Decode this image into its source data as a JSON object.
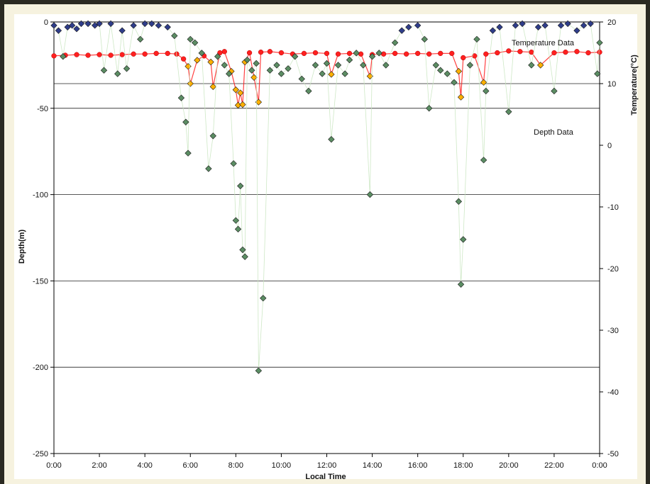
{
  "chart_data": {
    "type": "scatter",
    "title": "",
    "xlabel": "Local Time",
    "ylabel": "Depth(m)",
    "y2label": "Temperature(°C)",
    "x_ticks": [
      "0:00",
      "2:00",
      "4:00",
      "6:00",
      "8:00",
      "10:00",
      "12:00",
      "14:00",
      "16:00",
      "18:00",
      "20:00",
      "22:00",
      "0:00"
    ],
    "x_unit": "hours",
    "xlim": [
      0,
      24
    ],
    "ylim": [
      -250,
      0
    ],
    "y_ticks": [
      0,
      -50,
      -100,
      -150,
      -200,
      -250
    ],
    "y2lim": [
      -50,
      20
    ],
    "y2_ticks": [
      20,
      10,
      0,
      -10,
      -20,
      -30,
      -40,
      -50
    ],
    "grid": "horizontal major gridlines",
    "legend": "series labels above lines",
    "series": [
      {
        "name": "Temperature Data",
        "axis": "right",
        "color": "#ff2020",
        "marker_color": "#ffb000",
        "x": [
          0.0,
          0.5,
          1.0,
          1.5,
          2.0,
          2.5,
          3.0,
          3.5,
          4.0,
          4.5,
          5.0,
          5.4,
          5.7,
          5.9,
          6.0,
          6.3,
          6.6,
          6.9,
          7.0,
          7.3,
          7.5,
          7.8,
          8.0,
          8.1,
          8.2,
          8.3,
          8.4,
          8.6,
          8.8,
          9.0,
          9.1,
          9.5,
          10.0,
          10.5,
          11.0,
          11.5,
          12.0,
          12.2,
          12.5,
          13.0,
          13.5,
          13.9,
          14.0,
          14.5,
          15.0,
          15.5,
          16.0,
          16.5,
          17.0,
          17.5,
          17.8,
          17.9,
          18.0,
          18.5,
          18.9,
          19.0,
          19.5,
          20.0,
          20.5,
          21.0,
          21.4,
          22.0,
          22.5,
          23.0,
          23.5,
          24.0
        ],
        "y": [
          14.5,
          14.6,
          14.7,
          14.6,
          14.7,
          14.6,
          14.7,
          14.8,
          14.8,
          14.9,
          14.9,
          14.8,
          14.0,
          12.8,
          10.0,
          13.8,
          14.5,
          13.5,
          9.5,
          15.0,
          15.2,
          12.0,
          9.0,
          6.5,
          8.5,
          6.6,
          13.5,
          15.0,
          11.0,
          7.0,
          15.1,
          15.2,
          15.0,
          14.8,
          14.9,
          15.0,
          14.9,
          11.5,
          14.8,
          14.9,
          14.8,
          11.2,
          14.7,
          14.8,
          14.9,
          14.8,
          14.9,
          14.8,
          14.9,
          14.9,
          12.0,
          7.8,
          14.2,
          14.5,
          10.2,
          14.8,
          15.0,
          15.3,
          15.2,
          15.1,
          13.0,
          15.0,
          15.1,
          15.2,
          15.0,
          15.1
        ]
      },
      {
        "name": "Depth Data",
        "axis": "left",
        "color": "#c9e6c0",
        "marker_color": "#5b8d63",
        "marker_color_alt": "#2f3d8a",
        "x": [
          0.0,
          0.2,
          0.4,
          0.6,
          0.8,
          1.0,
          1.2,
          1.5,
          1.8,
          2.0,
          2.2,
          2.5,
          2.8,
          3.0,
          3.2,
          3.5,
          3.8,
          4.0,
          4.3,
          4.6,
          5.0,
          5.3,
          5.6,
          5.8,
          5.9,
          6.0,
          6.2,
          6.5,
          6.8,
          7.0,
          7.2,
          7.5,
          7.7,
          7.9,
          8.0,
          8.1,
          8.2,
          8.3,
          8.4,
          8.5,
          8.7,
          8.9,
          9.0,
          9.2,
          9.5,
          9.8,
          10.0,
          10.3,
          10.6,
          10.9,
          11.2,
          11.5,
          11.8,
          12.0,
          12.2,
          12.5,
          12.8,
          13.0,
          13.3,
          13.6,
          13.9,
          14.0,
          14.3,
          14.6,
          15.0,
          15.3,
          15.6,
          16.0,
          16.3,
          16.5,
          16.8,
          17.0,
          17.3,
          17.6,
          17.8,
          17.9,
          18.0,
          18.3,
          18.6,
          18.9,
          19.0,
          19.3,
          19.6,
          20.0,
          20.3,
          20.6,
          21.0,
          21.3,
          21.6,
          22.0,
          22.3,
          22.6,
          23.0,
          23.3,
          23.6,
          23.9,
          24.0
        ],
        "y": [
          -2,
          -5,
          -20,
          -3,
          -2,
          -4,
          -1,
          -1,
          -2,
          -1,
          -28,
          -1,
          -30,
          -5,
          -27,
          -2,
          -10,
          -1,
          -1,
          -2,
          -3,
          -8,
          -44,
          -58,
          -76,
          -10,
          -12,
          -18,
          -85,
          -66,
          -20,
          -25,
          -30,
          -82,
          -115,
          -120,
          -95,
          -132,
          -136,
          -22,
          -28,
          -24,
          -202,
          -160,
          -28,
          -25,
          -30,
          -27,
          -20,
          -33,
          -40,
          -25,
          -30,
          -24,
          -68,
          -25,
          -30,
          -22,
          -18,
          -25,
          -100,
          -20,
          -18,
          -25,
          -12,
          -5,
          -3,
          -2,
          -10,
          -50,
          -25,
          -28,
          -30,
          -35,
          -104,
          -152,
          -126,
          -25,
          -10,
          -80,
          -40,
          -5,
          -3,
          -52,
          -2,
          -1,
          -25,
          -3,
          -2,
          -40,
          -2,
          -1,
          -5,
          -2,
          -1,
          -30,
          -12
        ]
      }
    ]
  }
}
